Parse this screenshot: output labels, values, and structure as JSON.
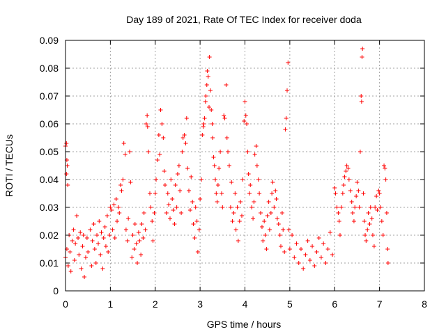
{
  "chart_data": {
    "type": "scatter",
    "title": "Day 189 of 2021, Rate Of TEC Index for receiver doda",
    "xlabel": "GPS time / hours",
    "ylabel": "ROTI / TECUs",
    "xlim": [
      0,
      8
    ],
    "ylim": [
      0,
      0.09
    ],
    "xticks": [
      "0",
      "1",
      "2",
      "3",
      "4",
      "5",
      "6",
      "7",
      "8"
    ],
    "yticks": [
      "0",
      "0.01",
      "0.02",
      "0.03",
      "0.04",
      "0.05",
      "0.06",
      "0.07",
      "0.08",
      "0.09"
    ],
    "grid": true,
    "marker": "+",
    "color": "#ff0000",
    "series": [
      {
        "points": [
          [
            0.0,
            0.052
          ],
          [
            0.02,
            0.053
          ],
          [
            0.03,
            0.047
          ],
          [
            0.04,
            0.045
          ],
          [
            0.02,
            0.042
          ],
          [
            0.05,
            0.038
          ],
          [
            0.0,
            0.012
          ],
          [
            0.03,
            0.015
          ],
          [
            0.06,
            0.009
          ],
          [
            0.08,
            0.02
          ],
          [
            0.1,
            0.014
          ],
          [
            0.12,
            0.007
          ],
          [
            0.15,
            0.018
          ],
          [
            0.18,
            0.022
          ],
          [
            0.2,
            0.011
          ],
          [
            0.22,
            0.017
          ],
          [
            0.25,
            0.027
          ],
          [
            0.28,
            0.019
          ],
          [
            0.3,
            0.013
          ],
          [
            0.33,
            0.021
          ],
          [
            0.35,
            0.008
          ],
          [
            0.38,
            0.016
          ],
          [
            0.4,
            0.02
          ],
          [
            0.42,
            0.005
          ],
          [
            0.45,
            0.012
          ],
          [
            0.48,
            0.019
          ],
          [
            0.5,
            0.014
          ],
          [
            0.55,
            0.022
          ],
          [
            0.58,
            0.009
          ],
          [
            0.6,
            0.018
          ],
          [
            0.63,
            0.024
          ],
          [
            0.65,
            0.015
          ],
          [
            0.68,
            0.01
          ],
          [
            0.7,
            0.02
          ],
          [
            0.73,
            0.017
          ],
          [
            0.75,
            0.025
          ],
          [
            0.78,
            0.013
          ],
          [
            0.8,
            0.021
          ],
          [
            0.83,
            0.008
          ],
          [
            0.85,
            0.019
          ],
          [
            0.88,
            0.023
          ],
          [
            0.9,
            0.016
          ],
          [
            0.93,
            0.027
          ],
          [
            0.95,
            0.014
          ],
          [
            0.98,
            0.02
          ],
          [
            1.0,
            0.03
          ],
          [
            1.03,
            0.029
          ],
          [
            1.05,
            0.022
          ],
          [
            1.08,
            0.031
          ],
          [
            1.1,
            0.019
          ],
          [
            1.13,
            0.033
          ],
          [
            1.15,
            0.025
          ],
          [
            1.18,
            0.03
          ],
          [
            1.2,
            0.028
          ],
          [
            1.23,
            0.038
          ],
          [
            1.25,
            0.036
          ],
          [
            1.28,
            0.04
          ],
          [
            1.3,
            0.053
          ],
          [
            1.33,
            0.049
          ],
          [
            1.35,
            0.022
          ],
          [
            1.38,
            0.018
          ],
          [
            1.4,
            0.026
          ],
          [
            1.43,
            0.05
          ],
          [
            1.45,
            0.039
          ],
          [
            1.48,
            0.012
          ],
          [
            1.5,
            0.02
          ],
          [
            1.53,
            0.015
          ],
          [
            1.55,
            0.024
          ],
          [
            1.58,
            0.017
          ],
          [
            1.6,
            0.01
          ],
          [
            1.63,
            0.021
          ],
          [
            1.65,
            0.018
          ],
          [
            1.68,
            0.013
          ],
          [
            1.7,
            0.024
          ],
          [
            1.73,
            0.019
          ],
          [
            1.75,
            0.028
          ],
          [
            1.78,
            0.022
          ],
          [
            1.8,
            0.06
          ],
          [
            1.82,
            0.063
          ],
          [
            1.83,
            0.059
          ],
          [
            1.85,
            0.05
          ],
          [
            1.88,
            0.035
          ],
          [
            1.9,
            0.03
          ],
          [
            1.93,
            0.025
          ],
          [
            1.95,
            0.018
          ],
          [
            1.98,
            0.028
          ],
          [
            2.0,
            0.035
          ],
          [
            2.02,
            0.04
          ],
          [
            2.05,
            0.047
          ],
          [
            2.08,
            0.056
          ],
          [
            2.1,
            0.049
          ],
          [
            2.12,
            0.065
          ],
          [
            2.15,
            0.06
          ],
          [
            2.18,
            0.055
          ],
          [
            2.2,
            0.043
          ],
          [
            2.22,
            0.038
          ],
          [
            2.25,
            0.028
          ],
          [
            2.28,
            0.035
          ],
          [
            2.3,
            0.031
          ],
          [
            2.33,
            0.026
          ],
          [
            2.35,
            0.04
          ],
          [
            2.38,
            0.033
          ],
          [
            2.4,
            0.029
          ],
          [
            2.43,
            0.024
          ],
          [
            2.45,
            0.038
          ],
          [
            2.48,
            0.03
          ],
          [
            2.5,
            0.042
          ],
          [
            2.53,
            0.045
          ],
          [
            2.55,
            0.036
          ],
          [
            2.58,
            0.028
          ],
          [
            2.6,
            0.05
          ],
          [
            2.62,
            0.055
          ],
          [
            2.65,
            0.056
          ],
          [
            2.68,
            0.053
          ],
          [
            2.7,
            0.062
          ],
          [
            2.72,
            0.044
          ],
          [
            2.75,
            0.036
          ],
          [
            2.78,
            0.029
          ],
          [
            2.8,
            0.041
          ],
          [
            2.83,
            0.032
          ],
          [
            2.85,
            0.024
          ],
          [
            2.88,
            0.019
          ],
          [
            2.9,
            0.03
          ],
          [
            2.93,
            0.025
          ],
          [
            2.95,
            0.014
          ],
          [
            2.98,
            0.022
          ],
          [
            3.0,
            0.033
          ],
          [
            3.03,
            0.04
          ],
          [
            3.05,
            0.056
          ],
          [
            3.07,
            0.059
          ],
          [
            3.08,
            0.06
          ],
          [
            3.1,
            0.062
          ],
          [
            3.12,
            0.068
          ],
          [
            3.13,
            0.07
          ],
          [
            3.15,
            0.074
          ],
          [
            3.16,
            0.079
          ],
          [
            3.18,
            0.077
          ],
          [
            3.2,
            0.066
          ],
          [
            3.21,
            0.084
          ],
          [
            3.23,
            0.072
          ],
          [
            3.25,
            0.065
          ],
          [
            3.27,
            0.06
          ],
          [
            3.28,
            0.055
          ],
          [
            3.3,
            0.048
          ],
          [
            3.32,
            0.045
          ],
          [
            3.34,
            0.04
          ],
          [
            3.36,
            0.035
          ],
          [
            3.38,
            0.032
          ],
          [
            3.4,
            0.038
          ],
          [
            3.42,
            0.044
          ],
          [
            3.45,
            0.05
          ],
          [
            3.48,
            0.035
          ],
          [
            3.5,
            0.03
          ],
          [
            3.53,
            0.063
          ],
          [
            3.55,
            0.062
          ],
          [
            3.58,
            0.074
          ],
          [
            3.6,
            0.055
          ],
          [
            3.62,
            0.05
          ],
          [
            3.65,
            0.045
          ],
          [
            3.68,
            0.03
          ],
          [
            3.7,
            0.039
          ],
          [
            3.72,
            0.025
          ],
          [
            3.75,
            0.028
          ],
          [
            3.78,
            0.035
          ],
          [
            3.8,
            0.022
          ],
          [
            3.83,
            0.03
          ],
          [
            3.85,
            0.018
          ],
          [
            3.88,
            0.025
          ],
          [
            3.9,
            0.032
          ],
          [
            3.93,
            0.027
          ],
          [
            3.95,
            0.04
          ],
          [
            3.98,
            0.061
          ],
          [
            4.0,
            0.068
          ],
          [
            4.02,
            0.063
          ],
          [
            4.04,
            0.06
          ],
          [
            4.06,
            0.05
          ],
          [
            4.08,
            0.042
          ],
          [
            4.1,
            0.035
          ],
          [
            4.12,
            0.038
          ],
          [
            4.15,
            0.03
          ],
          [
            4.18,
            0.026
          ],
          [
            4.2,
            0.032
          ],
          [
            4.22,
            0.049
          ],
          [
            4.25,
            0.052
          ],
          [
            4.27,
            0.045
          ],
          [
            4.3,
            0.04
          ],
          [
            4.32,
            0.035
          ],
          [
            4.35,
            0.028
          ],
          [
            4.38,
            0.023
          ],
          [
            4.4,
            0.018
          ],
          [
            4.43,
            0.025
          ],
          [
            4.45,
            0.02
          ],
          [
            4.48,
            0.015
          ],
          [
            4.5,
            0.027
          ],
          [
            4.53,
            0.032
          ],
          [
            4.55,
            0.022
          ],
          [
            4.58,
            0.028
          ],
          [
            4.6,
            0.035
          ],
          [
            4.62,
            0.039
          ],
          [
            4.65,
            0.03
          ],
          [
            4.68,
            0.036
          ],
          [
            4.7,
            0.033
          ],
          [
            4.72,
            0.026
          ],
          [
            4.75,
            0.024
          ],
          [
            4.78,
            0.02
          ],
          [
            4.8,
            0.016
          ],
          [
            4.83,
            0.028
          ],
          [
            4.85,
            0.022
          ],
          [
            4.88,
            0.014
          ],
          [
            4.9,
            0.058
          ],
          [
            4.92,
            0.062
          ],
          [
            4.94,
            0.072
          ],
          [
            4.96,
            0.082
          ],
          [
            4.98,
            0.022
          ],
          [
            5.0,
            0.015
          ],
          [
            5.05,
            0.02
          ],
          [
            5.1,
            0.012
          ],
          [
            5.15,
            0.017
          ],
          [
            5.2,
            0.01
          ],
          [
            5.25,
            0.015
          ],
          [
            5.3,
            0.008
          ],
          [
            5.35,
            0.013
          ],
          [
            5.4,
            0.018
          ],
          [
            5.45,
            0.011
          ],
          [
            5.5,
            0.016
          ],
          [
            5.55,
            0.009
          ],
          [
            5.6,
            0.014
          ],
          [
            5.65,
            0.019
          ],
          [
            5.7,
            0.012
          ],
          [
            5.75,
            0.017
          ],
          [
            5.8,
            0.01
          ],
          [
            5.85,
            0.015
          ],
          [
            5.9,
            0.021
          ],
          [
            5.95,
            0.013
          ],
          [
            6.0,
            0.037
          ],
          [
            6.02,
            0.035
          ],
          [
            6.05,
            0.03
          ],
          [
            6.08,
            0.028
          ],
          [
            6.1,
            0.025
          ],
          [
            6.12,
            0.02
          ],
          [
            6.15,
            0.03
          ],
          [
            6.18,
            0.035
          ],
          [
            6.2,
            0.038
          ],
          [
            6.22,
            0.041
          ],
          [
            6.25,
            0.043
          ],
          [
            6.27,
            0.045
          ],
          [
            6.3,
            0.044
          ],
          [
            6.32,
            0.04
          ],
          [
            6.35,
            0.036
          ],
          [
            6.38,
            0.032
          ],
          [
            6.4,
            0.028
          ],
          [
            6.43,
            0.025
          ],
          [
            6.45,
            0.03
          ],
          [
            6.48,
            0.034
          ],
          [
            6.5,
            0.039
          ],
          [
            6.53,
            0.036
          ],
          [
            6.55,
            0.03
          ],
          [
            6.57,
            0.05
          ],
          [
            6.59,
            0.07
          ],
          [
            6.6,
            0.068
          ],
          [
            6.61,
            0.084
          ],
          [
            6.62,
            0.087
          ],
          [
            6.64,
            0.035
          ],
          [
            6.66,
            0.025
          ],
          [
            6.68,
            0.02
          ],
          [
            6.7,
            0.018
          ],
          [
            6.73,
            0.022
          ],
          [
            6.75,
            0.028
          ],
          [
            6.78,
            0.024
          ],
          [
            6.8,
            0.03
          ],
          [
            6.83,
            0.026
          ],
          [
            6.85,
            0.02
          ],
          [
            6.88,
            0.016
          ],
          [
            6.9,
            0.03
          ],
          [
            6.93,
            0.034
          ],
          [
            6.95,
            0.029
          ],
          [
            6.98,
            0.036
          ],
          [
            7.0,
            0.035
          ],
          [
            7.02,
            0.03
          ],
          [
            7.05,
            0.025
          ],
          [
            7.08,
            0.02
          ],
          [
            7.1,
            0.045
          ],
          [
            7.12,
            0.044
          ],
          [
            7.14,
            0.04
          ],
          [
            7.16,
            0.028
          ],
          [
            7.18,
            0.015
          ],
          [
            7.19,
            0.01
          ]
        ]
      }
    ]
  }
}
